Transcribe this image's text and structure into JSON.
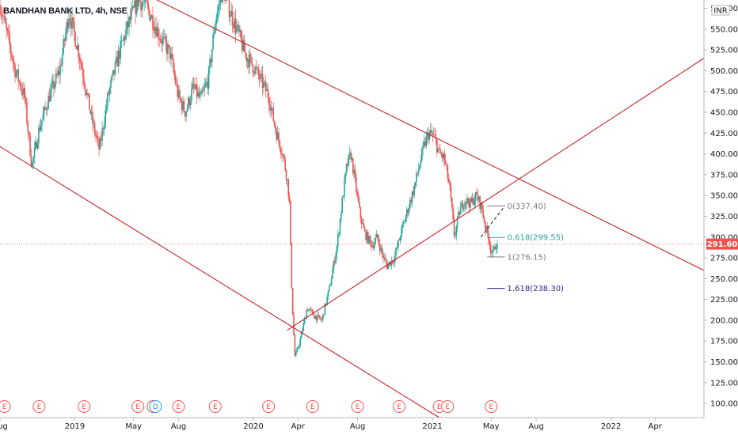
{
  "header": {
    "symbol_title": "BANDHAN BANK LTD, 4h, NSE",
    "currency_badge": "INR"
  },
  "colors": {
    "up": "#26a69a",
    "down": "#ef5350",
    "trendline": "#c2272d",
    "current_price": "#ef5350",
    "fib_0": "#787b86",
    "fib_0618": "#26a69a",
    "fib_1": "#787b86",
    "fib_1618": "#311b92",
    "event_earnings": "#ef5350",
    "event_dividend": "#2196f3"
  },
  "chart_data": {
    "type": "candlestick",
    "title": "BANDHAN BANK LTD, 4h, NSE",
    "y_axis": {
      "ticks": [
        100,
        125,
        150,
        175,
        200,
        225,
        250,
        275,
        300,
        325,
        350,
        375,
        400,
        425,
        450,
        475,
        500,
        525,
        550,
        575
      ],
      "tick_labels": [
        "100.00",
        "125.00",
        "150.00",
        "175.00",
        "200.00",
        "225.00",
        "250.00",
        "275.00",
        "300.00",
        "325.00",
        "350.00",
        "375.00",
        "400.00",
        "425.00",
        "450.00",
        "475.00",
        "500.00",
        "525.00",
        "550.00",
        "575.00"
      ],
      "range": [
        83,
        585
      ],
      "currency": "INR"
    },
    "x_axis": {
      "ticks": [
        {
          "label": "Aug",
          "date": "2018-08-01"
        },
        {
          "label": "2019",
          "date": "2019-01-01"
        },
        {
          "label": "May",
          "date": "2019-05-01"
        },
        {
          "label": "Aug",
          "date": "2019-08-01"
        },
        {
          "label": "2020",
          "date": "2020-01-01"
        },
        {
          "label": "Apr",
          "date": "2020-04-01"
        },
        {
          "label": "Aug",
          "date": "2020-08-01"
        },
        {
          "label": "2021",
          "date": "2021-01-01"
        },
        {
          "label": "May",
          "date": "2021-05-01"
        },
        {
          "label": "Aug",
          "date": "2021-08-01"
        },
        {
          "label": "2022",
          "date": "2022-01-01"
        },
        {
          "label": "Apr",
          "date": "2022-04-01"
        }
      ],
      "range": [
        "2018-08-01",
        "2022-07-10"
      ]
    },
    "price_path": [
      [
        "2018-08-01",
        580
      ],
      [
        "2018-08-15",
        545
      ],
      [
        "2018-09-01",
        500
      ],
      [
        "2018-09-20",
        470
      ],
      [
        "2018-10-05",
        385
      ],
      [
        "2018-10-20",
        430
      ],
      [
        "2018-11-10",
        470
      ],
      [
        "2018-12-01",
        500
      ],
      [
        "2018-12-20",
        570
      ],
      [
        "2019-01-10",
        520
      ],
      [
        "2019-02-05",
        440
      ],
      [
        "2019-02-20",
        405
      ],
      [
        "2019-03-10",
        470
      ],
      [
        "2019-04-01",
        520
      ],
      [
        "2019-04-20",
        555
      ],
      [
        "2019-05-10",
        585
      ],
      [
        "2019-05-25",
        580
      ],
      [
        "2019-06-10",
        560
      ],
      [
        "2019-06-25",
        540
      ],
      [
        "2019-07-15",
        520
      ],
      [
        "2019-07-31",
        470
      ],
      [
        "2019-08-15",
        450
      ],
      [
        "2019-08-31",
        480
      ],
      [
        "2019-09-15",
        465
      ],
      [
        "2019-10-01",
        490
      ],
      [
        "2019-10-15",
        560
      ],
      [
        "2019-10-31",
        600
      ],
      [
        "2019-11-15",
        570
      ],
      [
        "2019-12-01",
        545
      ],
      [
        "2019-12-15",
        520
      ],
      [
        "2020-01-01",
        505
      ],
      [
        "2020-01-15",
        490
      ],
      [
        "2020-02-01",
        470
      ],
      [
        "2020-02-15",
        430
      ],
      [
        "2020-03-01",
        400
      ],
      [
        "2020-03-10",
        370
      ],
      [
        "2020-03-15",
        340
      ],
      [
        "2020-03-18",
        260
      ],
      [
        "2020-03-22",
        200
      ],
      [
        "2020-03-26",
        155
      ],
      [
        "2020-04-05",
        175
      ],
      [
        "2020-04-20",
        215
      ],
      [
        "2020-05-05",
        205
      ],
      [
        "2020-05-20",
        200
      ],
      [
        "2020-06-05",
        240
      ],
      [
        "2020-06-20",
        290
      ],
      [
        "2020-07-01",
        345
      ],
      [
        "2020-07-10",
        385
      ],
      [
        "2020-07-18",
        400
      ],
      [
        "2020-07-26",
        370
      ],
      [
        "2020-08-05",
        330
      ],
      [
        "2020-08-15",
        305
      ],
      [
        "2020-08-31",
        290
      ],
      [
        "2020-09-10",
        300
      ],
      [
        "2020-09-20",
        280
      ],
      [
        "2020-09-30",
        265
      ],
      [
        "2020-10-15",
        275
      ],
      [
        "2020-10-31",
        310
      ],
      [
        "2020-11-15",
        340
      ],
      [
        "2020-11-25",
        360
      ],
      [
        "2020-12-05",
        385
      ],
      [
        "2020-12-15",
        410
      ],
      [
        "2020-12-24",
        425
      ],
      [
        "2021-01-05",
        420
      ],
      [
        "2021-01-15",
        400
      ],
      [
        "2021-01-25",
        395
      ],
      [
        "2021-02-05",
        360
      ],
      [
        "2021-02-15",
        300
      ],
      [
        "2021-02-25",
        330
      ],
      [
        "2021-03-08",
        345
      ],
      [
        "2021-03-20",
        340
      ],
      [
        "2021-04-01",
        350
      ],
      [
        "2021-04-12",
        335
      ],
      [
        "2021-04-20",
        310
      ],
      [
        "2021-04-26",
        300
      ],
      [
        "2021-04-30",
        285
      ],
      [
        "2021-05-05",
        280
      ],
      [
        "2021-05-10",
        292
      ],
      [
        "2021-05-14",
        291.6
      ]
    ],
    "last_price": "291.60",
    "trendlines": [
      {
        "name": "upper-falling-resistance",
        "from": [
          "2019-06-01",
          590
        ],
        "to": [
          "2022-07-10",
          260
        ]
      },
      {
        "name": "lower-falling-support",
        "from": [
          "2018-07-01",
          420
        ],
        "to": [
          "2021-01-15",
          83
        ]
      },
      {
        "name": "rising-support",
        "from": [
          "2020-03-10",
          188
        ],
        "to": [
          "2022-07-10",
          515
        ]
      }
    ],
    "projection": {
      "from": [
        "2021-04-10",
        300
      ],
      "to": [
        "2021-05-29",
        337.4
      ]
    },
    "fib_levels": [
      {
        "ratio": "0",
        "price": 337.4,
        "label": "0(337.40)",
        "color_key": "fib_0"
      },
      {
        "ratio": "0.618",
        "price": 299.55,
        "label": "0.618(299.55)",
        "color_key": "fib_0618"
      },
      {
        "ratio": "1",
        "price": 276.15,
        "label": "1(276.15)",
        "color_key": "fib_1"
      },
      {
        "ratio": "1.618",
        "price": 238.3,
        "label": "1.618(238.30)",
        "color_key": "fib_1618"
      }
    ],
    "fib_range": [
      "2021-05-01",
      "2021-05-29"
    ],
    "events": [
      {
        "date": "2018-08-10",
        "type": "E"
      },
      {
        "date": "2018-10-20",
        "type": "E"
      },
      {
        "date": "2019-01-20",
        "type": "E"
      },
      {
        "date": "2019-05-10",
        "type": "E"
      },
      {
        "date": "2019-06-10",
        "type": "E"
      },
      {
        "date": "2019-06-15",
        "type": "D"
      },
      {
        "date": "2019-08-01",
        "type": "E"
      },
      {
        "date": "2019-10-15",
        "type": "E"
      },
      {
        "date": "2020-02-01",
        "type": "E"
      },
      {
        "date": "2020-05-01",
        "type": "E"
      },
      {
        "date": "2020-08-01",
        "type": "E"
      },
      {
        "date": "2020-10-25",
        "type": "E"
      },
      {
        "date": "2021-01-15",
        "type": "E"
      },
      {
        "date": "2021-02-01",
        "type": "E"
      },
      {
        "date": "2021-05-01",
        "type": "E"
      }
    ]
  }
}
